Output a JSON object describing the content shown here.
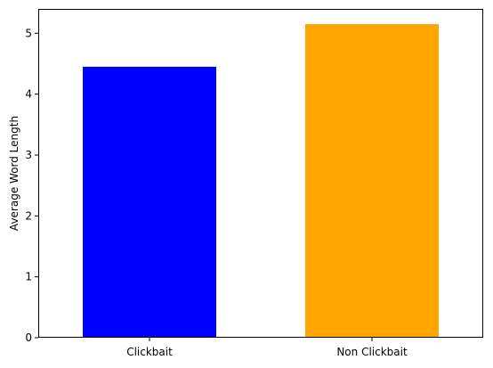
{
  "chart_data": {
    "type": "bar",
    "title": "",
    "xlabel": "",
    "ylabel": "Average Word Length",
    "categories": [
      "Clickbait",
      "Non Clickbait"
    ],
    "values": [
      4.45,
      5.15
    ],
    "colors": [
      "#0000ff",
      "#ffa500"
    ],
    "ylim": [
      0,
      5.4
    ],
    "yticks": [
      0,
      1,
      2,
      3,
      4,
      5
    ],
    "grid": false,
    "legend": "none"
  }
}
